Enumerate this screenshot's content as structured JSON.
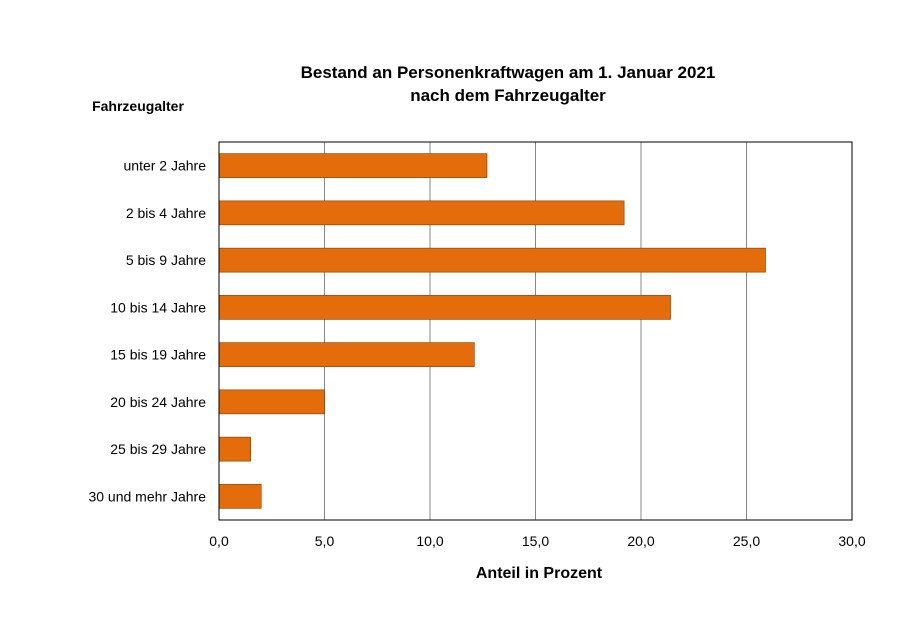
{
  "chart_data": {
    "type": "bar",
    "orientation": "horizontal",
    "title": [
      "Bestand an Personenkraftwagen am 1. Januar 2021",
      "nach dem Fahrzeugalter"
    ],
    "ylabel": "Fahrzeugalter",
    "xlabel": "Anteil in Prozent",
    "categories": [
      "unter 2 Jahre",
      "2 bis 4 Jahre",
      "5 bis 9 Jahre",
      "10 bis 14 Jahre",
      "15 bis 19 Jahre",
      "20 bis 24 Jahre",
      "25 bis 29 Jahre",
      "30 und mehr Jahre"
    ],
    "values": [
      12.7,
      19.2,
      25.9,
      21.4,
      12.1,
      5.0,
      1.5,
      2.0
    ],
    "xlim": [
      0,
      30
    ],
    "xticks": [
      0,
      5,
      10,
      15,
      20,
      25,
      30
    ],
    "xtick_labels": [
      "0,0",
      "5,0",
      "10,0",
      "15,0",
      "20,0",
      "25,0",
      "30,0"
    ],
    "grid": "vertical",
    "legend": "none",
    "bar_color": "#E46C0A"
  }
}
